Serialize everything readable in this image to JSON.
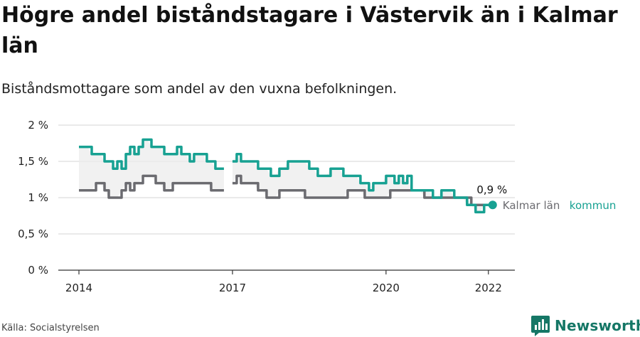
{
  "title": "Högre andel biståndstagare i Västervik än i Kalmar län",
  "subtitle": "Biståndsmottagare som andel av den vuxna befolkningen.",
  "source": "Källa: Socialstyrelsen",
  "brand": "Newsworthy",
  "colors": {
    "kommun": "#17a192",
    "lan": "#6b6b70",
    "band": "#ebebeb",
    "grid": "#dedede",
    "axis": "#333333",
    "brand": "#157766"
  },
  "chart_data": {
    "type": "line",
    "title": "Högre andel biståndstagare i Västervik än i Kalmar län",
    "ylim": [
      0,
      2
    ],
    "y_ticks": [
      {
        "value": 0,
        "label": "0 %"
      },
      {
        "value": 0.5,
        "label": "0,5 %"
      },
      {
        "value": 1,
        "label": "1 %"
      },
      {
        "value": 1.5,
        "label": "1,5 %"
      },
      {
        "value": 2,
        "label": "2 %"
      }
    ],
    "x_ticks": [
      {
        "value": 2014,
        "label": "2014"
      },
      {
        "value": 2017,
        "label": "2017"
      },
      {
        "value": 2020,
        "label": "2020"
      },
      {
        "value": 2022,
        "label": "2022"
      }
    ],
    "xlim": [
      2014,
      2022.1
    ],
    "grid": true,
    "end_label": "0,9 %",
    "series": [
      {
        "name": "kommun",
        "color": "#17a192",
        "start": 2014,
        "step_months": 1,
        "values": [
          1.7,
          1.7,
          1.7,
          1.6,
          1.6,
          1.6,
          1.5,
          1.5,
          1.4,
          1.5,
          1.4,
          1.6,
          1.7,
          1.6,
          1.7,
          1.8,
          1.8,
          1.7,
          1.7,
          1.7,
          1.6,
          1.6,
          1.6,
          1.7,
          1.6,
          1.6,
          1.5,
          1.6,
          1.6,
          1.6,
          1.5,
          1.5,
          1.4,
          1.4,
          1.4,
          null,
          1.5,
          1.6,
          1.5,
          1.5,
          1.5,
          1.5,
          1.4,
          1.4,
          1.4,
          1.3,
          1.3,
          1.4,
          1.4,
          1.5,
          1.5,
          1.5,
          1.5,
          1.5,
          1.4,
          1.4,
          1.3,
          1.3,
          1.3,
          1.4,
          1.4,
          1.4,
          1.3,
          1.3,
          1.3,
          1.3,
          1.2,
          1.2,
          1.1,
          1.2,
          1.2,
          1.2,
          1.3,
          1.3,
          1.2,
          1.3,
          1.2,
          1.3,
          1.1,
          1.1,
          1.1,
          1.1,
          1.1,
          1.0,
          1.0,
          1.1,
          1.1,
          1.1,
          1.0,
          1.0,
          1.0,
          0.9,
          0.9,
          0.8,
          0.8,
          0.9,
          0.9,
          0.9
        ]
      },
      {
        "name": "Kalmar län",
        "color": "#6b6b70",
        "start": 2014,
        "step_months": 1,
        "values": [
          1.1,
          1.1,
          1.1,
          1.1,
          1.2,
          1.2,
          1.1,
          1.0,
          1.0,
          1.0,
          1.1,
          1.2,
          1.1,
          1.2,
          1.2,
          1.3,
          1.3,
          1.3,
          1.2,
          1.2,
          1.1,
          1.1,
          1.2,
          1.2,
          1.2,
          1.2,
          1.2,
          1.2,
          1.2,
          1.2,
          1.2,
          1.1,
          1.1,
          1.1,
          1.1,
          null,
          1.2,
          1.3,
          1.2,
          1.2,
          1.2,
          1.2,
          1.1,
          1.1,
          1.0,
          1.0,
          1.0,
          1.1,
          1.1,
          1.1,
          1.1,
          1.1,
          1.1,
          1.0,
          1.0,
          1.0,
          1.0,
          1.0,
          1.0,
          1.0,
          1.0,
          1.0,
          1.0,
          1.1,
          1.1,
          1.1,
          1.1,
          1.0,
          1.0,
          1.0,
          1.0,
          1.0,
          1.0,
          1.1,
          1.1,
          1.1,
          1.1,
          1.1,
          1.1,
          1.1,
          1.1,
          1.0,
          1.0,
          1.0,
          1.0,
          1.0,
          1.0,
          1.0,
          1.0,
          1.0,
          1.0,
          1.0,
          0.9,
          0.9,
          0.9,
          0.9,
          0.9,
          0.9
        ]
      }
    ]
  }
}
